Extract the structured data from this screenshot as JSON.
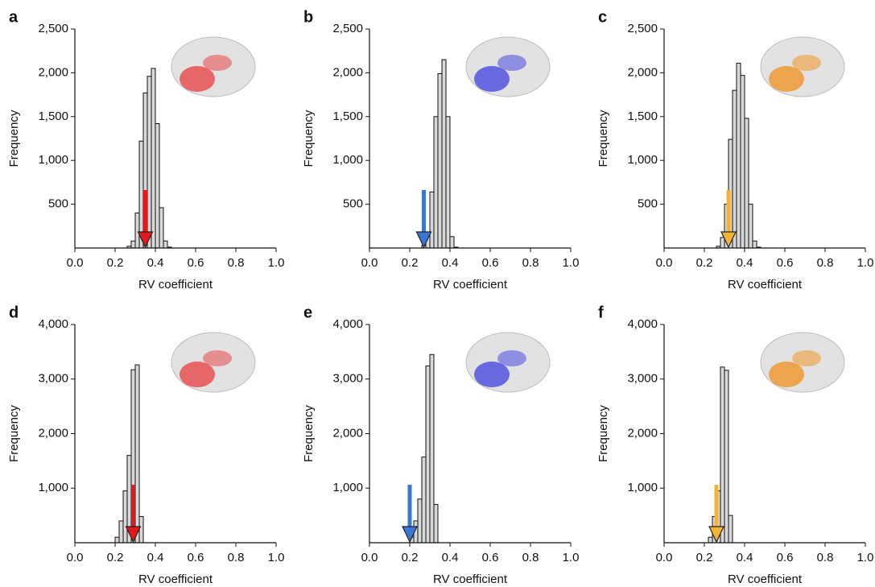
{
  "chart_data": [
    {
      "type": "histogram",
      "label": "a",
      "xlabel": "RV coefficient",
      "ylabel": "Frequency",
      "color": "#d9d9d9",
      "observed": 0.35,
      "observed_color": "#e31a1c",
      "accent_color": "#e8494b",
      "bins": [
        0.26,
        0.28,
        0.3,
        0.32,
        0.34,
        0.36,
        0.38,
        0.4,
        0.42,
        0.44,
        0.46,
        0.48
      ],
      "values": [
        20,
        80,
        400,
        1220,
        1770,
        1960,
        2050,
        1420,
        460,
        80,
        10
      ],
      "xlim": [
        0,
        1
      ],
      "xticks": [
        {
          "value": 0,
          "label": "0.0"
        },
        0.2,
        0.4,
        0.6,
        0.8,
        {
          "value": 1,
          "label": "1.0"
        }
      ],
      "ylim": [
        0,
        2500
      ],
      "yticks": [
        500,
        {
          "value": 1000,
          "label": "1,000"
        },
        {
          "value": 1500,
          "label": "1,500"
        },
        {
          "value": 2000,
          "label": "2,000"
        },
        {
          "value": 2500,
          "label": "2,500"
        }
      ]
    },
    {
      "type": "histogram",
      "label": "b",
      "xlabel": "RV coefficient",
      "ylabel": "Frequency",
      "color": "#d9d9d9",
      "observed": 0.27,
      "observed_color": "#3a78d8",
      "accent_color": "#4a4ae0",
      "bins": [
        0.26,
        0.28,
        0.3,
        0.32,
        0.34,
        0.36,
        0.38,
        0.4,
        0.42,
        0.44
      ],
      "values": [
        30,
        150,
        640,
        1500,
        1990,
        2150,
        1500,
        130,
        10
      ],
      "xlim": [
        0,
        1
      ],
      "xticks": [
        {
          "value": 0,
          "label": "0.0"
        },
        0.2,
        0.4,
        0.6,
        0.8,
        {
          "value": 1,
          "label": "1.0"
        }
      ],
      "ylim": [
        0,
        2500
      ],
      "yticks": [
        500,
        {
          "value": 1000,
          "label": "1,000"
        },
        {
          "value": 1500,
          "label": "1,500"
        },
        {
          "value": 2000,
          "label": "2,000"
        },
        {
          "value": 2500,
          "label": "2,500"
        }
      ]
    },
    {
      "type": "histogram",
      "label": "c",
      "xlabel": "RV coefficient",
      "ylabel": "Frequency",
      "color": "#d9d9d9",
      "observed": 0.32,
      "observed_color": "#f5b335",
      "accent_color": "#f0952a",
      "bins": [
        0.26,
        0.28,
        0.3,
        0.32,
        0.34,
        0.36,
        0.38,
        0.4,
        0.42,
        0.44,
        0.46,
        0.48
      ],
      "values": [
        20,
        120,
        500,
        1240,
        1800,
        2110,
        1970,
        1480,
        500,
        80,
        10
      ],
      "xlim": [
        0,
        1
      ],
      "xticks": [
        {
          "value": 0,
          "label": "0.0"
        },
        0.2,
        0.4,
        0.6,
        0.8,
        {
          "value": 1,
          "label": "1.0"
        }
      ],
      "ylim": [
        0,
        2500
      ],
      "yticks": [
        500,
        {
          "value": 1000,
          "label": "1,000"
        },
        {
          "value": 1500,
          "label": "1,500"
        },
        {
          "value": 2000,
          "label": "2,000"
        },
        {
          "value": 2500,
          "label": "2,500"
        }
      ]
    },
    {
      "type": "histogram",
      "label": "d",
      "xlabel": "RV coefficient",
      "ylabel": "Frequency",
      "color": "#d9d9d9",
      "observed": 0.29,
      "observed_color": "#e31a1c",
      "accent_color": "#e8494b",
      "bins": [
        0.2,
        0.22,
        0.24,
        0.26,
        0.28,
        0.3,
        0.32,
        0.34
      ],
      "values": [
        100,
        400,
        950,
        1600,
        3170,
        3260,
        480
      ],
      "xlim": [
        0,
        1
      ],
      "xticks": [
        {
          "value": 0,
          "label": "0.0"
        },
        0.2,
        0.4,
        0.6,
        0.8,
        {
          "value": 1,
          "label": "1.0"
        }
      ],
      "ylim": [
        0,
        4000
      ],
      "yticks": [
        {
          "value": 1000,
          "label": "1,000"
        },
        {
          "value": 2000,
          "label": "2,000"
        },
        {
          "value": 3000,
          "label": "3,000"
        },
        {
          "value": 4000,
          "label": "4,000"
        }
      ]
    },
    {
      "type": "histogram",
      "label": "e",
      "xlabel": "RV coefficient",
      "ylabel": "Frequency",
      "color": "#d9d9d9",
      "observed": 0.2,
      "observed_color": "#3a78d8",
      "accent_color": "#4a4ae0",
      "bins": [
        0.2,
        0.22,
        0.24,
        0.26,
        0.28,
        0.3,
        0.32,
        0.34
      ],
      "values": [
        100,
        400,
        800,
        1570,
        3240,
        3450,
        700
      ],
      "xlim": [
        0,
        1
      ],
      "xticks": [
        {
          "value": 0,
          "label": "0.0"
        },
        0.2,
        0.4,
        0.6,
        0.8,
        {
          "value": 1,
          "label": "1.0"
        }
      ],
      "ylim": [
        0,
        4000
      ],
      "yticks": [
        {
          "value": 1000,
          "label": "1,000"
        },
        {
          "value": 2000,
          "label": "2,000"
        },
        {
          "value": 3000,
          "label": "3,000"
        },
        {
          "value": 4000,
          "label": "4,000"
        }
      ]
    },
    {
      "type": "histogram",
      "label": "f",
      "xlabel": "RV coefficient",
      "ylabel": "Frequency",
      "color": "#d9d9d9",
      "observed": 0.26,
      "observed_color": "#f5b335",
      "accent_color": "#f0952a",
      "bins": [
        0.22,
        0.24,
        0.26,
        0.28,
        0.3,
        0.32,
        0.34
      ],
      "values": [
        100,
        480,
        950,
        3220,
        3160,
        500
      ],
      "xlim": [
        0,
        1
      ],
      "xticks": [
        {
          "value": 0,
          "label": "0.0"
        },
        0.2,
        0.4,
        0.6,
        0.8,
        {
          "value": 1,
          "label": "1.0"
        }
      ],
      "ylim": [
        0,
        4000
      ],
      "yticks": [
        {
          "value": 1000,
          "label": "1,000"
        },
        {
          "value": 2000,
          "label": "2,000"
        },
        {
          "value": 3000,
          "label": "3,000"
        },
        {
          "value": 4000,
          "label": "4,000"
        }
      ]
    }
  ]
}
